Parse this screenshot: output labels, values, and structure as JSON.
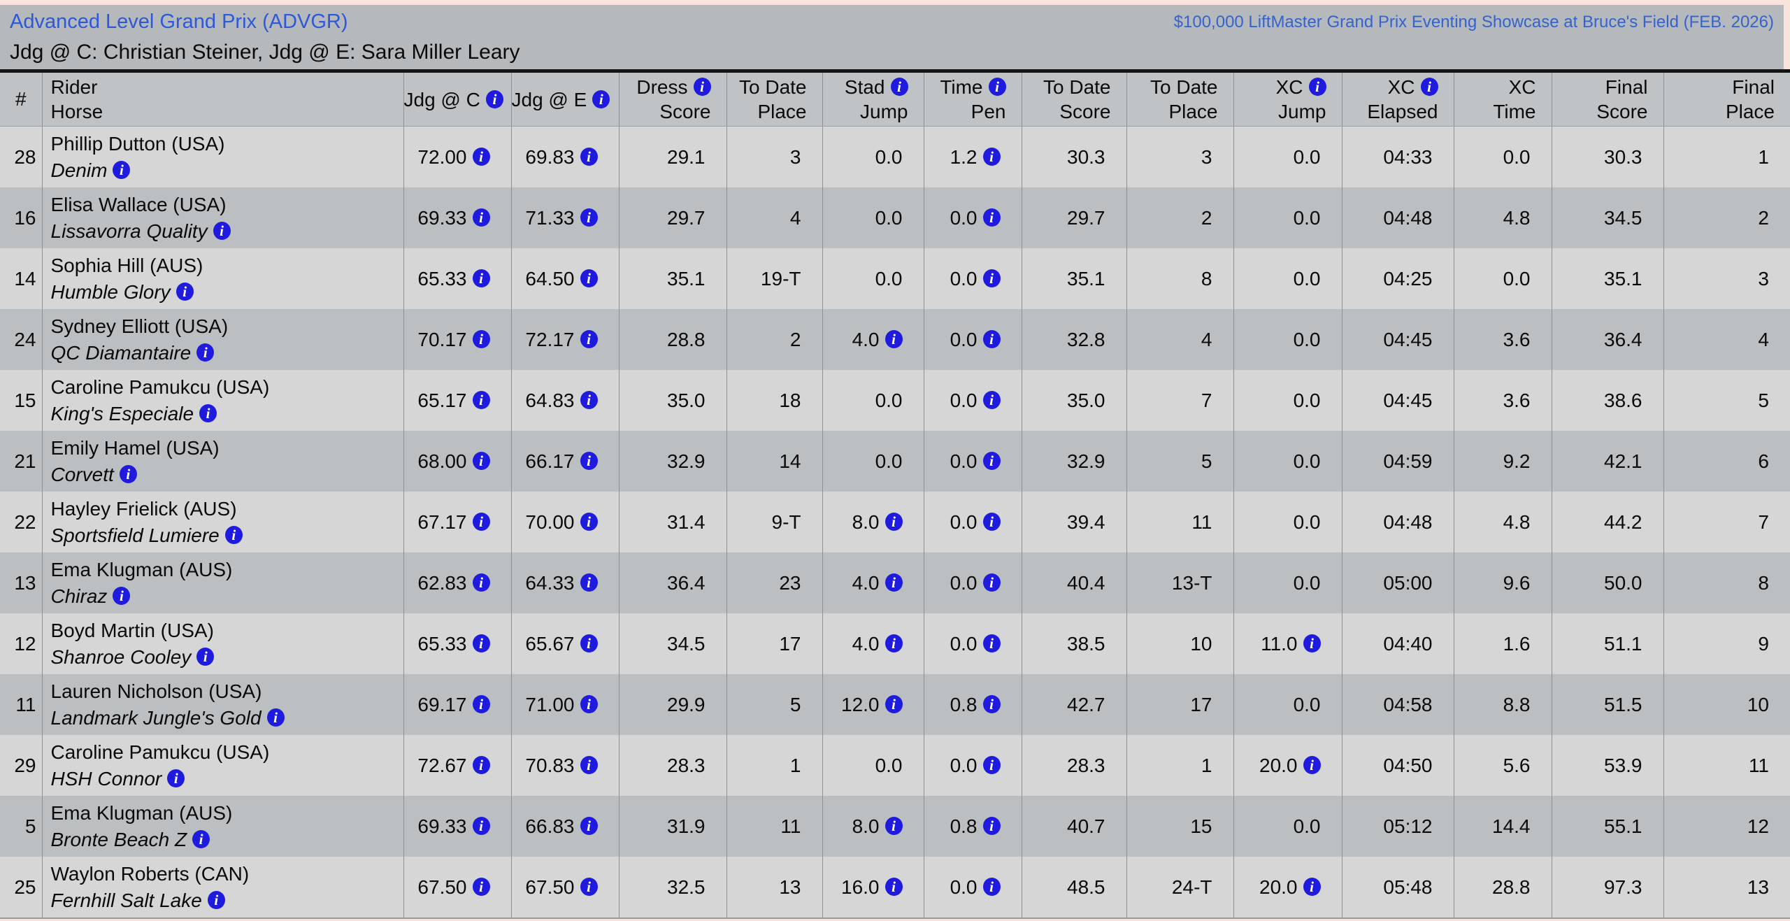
{
  "page": {
    "title_left": "Advanced Level Grand Prix (ADVGR)",
    "title_right": "$100,000 LiftMaster Grand Prix Eventing Showcase at Bruce's Field (FEB. 2026)",
    "judges_line": "Jdg @ C: Christian Steiner, Jdg @ E: Sara Miller Leary"
  },
  "colors": {
    "link_blue": "#2d58d8",
    "info_icon_blue": "#1e1bdf",
    "row_odd": "#d6d6d7",
    "row_even": "#bcbfc1",
    "header_bg": "#c0c3c5",
    "band_bg": "#b6b9bc",
    "page_bg": "#f8e4da"
  },
  "icons": {
    "info": "info-icon"
  },
  "table": {
    "columns": [
      {
        "key": "num",
        "h1": "#",
        "h2": null,
        "hicon": false,
        "cell_icon": "never"
      },
      {
        "key": "rider_horse",
        "h1": "Rider",
        "h2": "Horse",
        "hicon": false,
        "cell_icon": "never"
      },
      {
        "key": "jdg_c",
        "h1": "Jdg @ C",
        "h2": null,
        "hicon": true,
        "cell_icon": "always"
      },
      {
        "key": "jdg_e",
        "h1": "Jdg @ E",
        "h2": null,
        "hicon": true,
        "cell_icon": "always"
      },
      {
        "key": "dress_score",
        "h1": "Dress",
        "h2": "Score",
        "hicon": true,
        "cell_icon": "never"
      },
      {
        "key": "to_date_place1",
        "h1": "To Date",
        "h2": "Place",
        "hicon": false,
        "cell_icon": "never"
      },
      {
        "key": "stad_jump",
        "h1": "Stad",
        "h2": "Jump",
        "hicon": true,
        "cell_icon": "flag"
      },
      {
        "key": "time_pen",
        "h1": "Time",
        "h2": "Pen",
        "hicon": true,
        "cell_icon": "always"
      },
      {
        "key": "to_date_score",
        "h1": "To Date",
        "h2": "Score",
        "hicon": false,
        "cell_icon": "never"
      },
      {
        "key": "to_date_place2",
        "h1": "To Date",
        "h2": "Place",
        "hicon": false,
        "cell_icon": "never"
      },
      {
        "key": "xc_jump",
        "h1": "XC",
        "h2": "Jump",
        "hicon": true,
        "cell_icon": "flag"
      },
      {
        "key": "xc_elapsed",
        "h1": "XC",
        "h2": "Elapsed",
        "hicon": true,
        "cell_icon": "never"
      },
      {
        "key": "xc_time",
        "h1": "XC",
        "h2": "Time",
        "hicon": false,
        "cell_icon": "never"
      },
      {
        "key": "final_score",
        "h1": "Final",
        "h2": "Score",
        "hicon": false,
        "cell_icon": "never"
      },
      {
        "key": "final_place",
        "h1": "Final",
        "h2": "Place",
        "hicon": false,
        "cell_icon": "never"
      }
    ],
    "rows": [
      {
        "num": "28",
        "rider": "Phillip Dutton (USA)",
        "horse": "Denim",
        "jdg_c": "72.00",
        "jdg_e": "69.83",
        "dress_score": "29.1",
        "to_date_place1": "3",
        "stad_jump": "0.0",
        "time_pen": "1.2",
        "to_date_score": "30.3",
        "to_date_place2": "3",
        "xc_jump": "0.0",
        "xc_elapsed": "04:33",
        "xc_time": "0.0",
        "final_score": "30.3",
        "final_place": "1",
        "icons": []
      },
      {
        "num": "16",
        "rider": "Elisa Wallace (USA)",
        "horse": "Lissavorra Quality",
        "jdg_c": "69.33",
        "jdg_e": "71.33",
        "dress_score": "29.7",
        "to_date_place1": "4",
        "stad_jump": "0.0",
        "time_pen": "0.0",
        "to_date_score": "29.7",
        "to_date_place2": "2",
        "xc_jump": "0.0",
        "xc_elapsed": "04:48",
        "xc_time": "4.8",
        "final_score": "34.5",
        "final_place": "2",
        "icons": []
      },
      {
        "num": "14",
        "rider": "Sophia Hill (AUS)",
        "horse": "Humble Glory",
        "jdg_c": "65.33",
        "jdg_e": "64.50",
        "dress_score": "35.1",
        "to_date_place1": "19-T",
        "stad_jump": "0.0",
        "time_pen": "0.0",
        "to_date_score": "35.1",
        "to_date_place2": "8",
        "xc_jump": "0.0",
        "xc_elapsed": "04:25",
        "xc_time": "0.0",
        "final_score": "35.1",
        "final_place": "3",
        "icons": []
      },
      {
        "num": "24",
        "rider": "Sydney Elliott (USA)",
        "horse": "QC Diamantaire",
        "jdg_c": "70.17",
        "jdg_e": "72.17",
        "dress_score": "28.8",
        "to_date_place1": "2",
        "stad_jump": "4.0",
        "time_pen": "0.0",
        "to_date_score": "32.8",
        "to_date_place2": "4",
        "xc_jump": "0.0",
        "xc_elapsed": "04:45",
        "xc_time": "3.6",
        "final_score": "36.4",
        "final_place": "4",
        "icons": [
          "stad_jump"
        ]
      },
      {
        "num": "15",
        "rider": "Caroline Pamukcu (USA)",
        "horse": "King's Especiale",
        "jdg_c": "65.17",
        "jdg_e": "64.83",
        "dress_score": "35.0",
        "to_date_place1": "18",
        "stad_jump": "0.0",
        "time_pen": "0.0",
        "to_date_score": "35.0",
        "to_date_place2": "7",
        "xc_jump": "0.0",
        "xc_elapsed": "04:45",
        "xc_time": "3.6",
        "final_score": "38.6",
        "final_place": "5",
        "icons": []
      },
      {
        "num": "21",
        "rider": "Emily Hamel (USA)",
        "horse": "Corvett",
        "jdg_c": "68.00",
        "jdg_e": "66.17",
        "dress_score": "32.9",
        "to_date_place1": "14",
        "stad_jump": "0.0",
        "time_pen": "0.0",
        "to_date_score": "32.9",
        "to_date_place2": "5",
        "xc_jump": "0.0",
        "xc_elapsed": "04:59",
        "xc_time": "9.2",
        "final_score": "42.1",
        "final_place": "6",
        "icons": []
      },
      {
        "num": "22",
        "rider": "Hayley Frielick (AUS)",
        "horse": "Sportsfield Lumiere",
        "jdg_c": "67.17",
        "jdg_e": "70.00",
        "dress_score": "31.4",
        "to_date_place1": "9-T",
        "stad_jump": "8.0",
        "time_pen": "0.0",
        "to_date_score": "39.4",
        "to_date_place2": "11",
        "xc_jump": "0.0",
        "xc_elapsed": "04:48",
        "xc_time": "4.8",
        "final_score": "44.2",
        "final_place": "7",
        "icons": [
          "stad_jump"
        ]
      },
      {
        "num": "13",
        "rider": "Ema Klugman (AUS)",
        "horse": "Chiraz",
        "jdg_c": "62.83",
        "jdg_e": "64.33",
        "dress_score": "36.4",
        "to_date_place1": "23",
        "stad_jump": "4.0",
        "time_pen": "0.0",
        "to_date_score": "40.4",
        "to_date_place2": "13-T",
        "xc_jump": "0.0",
        "xc_elapsed": "05:00",
        "xc_time": "9.6",
        "final_score": "50.0",
        "final_place": "8",
        "icons": [
          "stad_jump"
        ]
      },
      {
        "num": "12",
        "rider": "Boyd Martin (USA)",
        "horse": "Shanroe Cooley",
        "jdg_c": "65.33",
        "jdg_e": "65.67",
        "dress_score": "34.5",
        "to_date_place1": "17",
        "stad_jump": "4.0",
        "time_pen": "0.0",
        "to_date_score": "38.5",
        "to_date_place2": "10",
        "xc_jump": "11.0",
        "xc_elapsed": "04:40",
        "xc_time": "1.6",
        "final_score": "51.1",
        "final_place": "9",
        "icons": [
          "stad_jump",
          "xc_jump"
        ]
      },
      {
        "num": "11",
        "rider": "Lauren Nicholson (USA)",
        "horse": "Landmark Jungle's Gold",
        "jdg_c": "69.17",
        "jdg_e": "71.00",
        "dress_score": "29.9",
        "to_date_place1": "5",
        "stad_jump": "12.0",
        "time_pen": "0.8",
        "to_date_score": "42.7",
        "to_date_place2": "17",
        "xc_jump": "0.0",
        "xc_elapsed": "04:58",
        "xc_time": "8.8",
        "final_score": "51.5",
        "final_place": "10",
        "icons": [
          "stad_jump"
        ]
      },
      {
        "num": "29",
        "rider": "Caroline Pamukcu (USA)",
        "horse": "HSH Connor",
        "jdg_c": "72.67",
        "jdg_e": "70.83",
        "dress_score": "28.3",
        "to_date_place1": "1",
        "stad_jump": "0.0",
        "time_pen": "0.0",
        "to_date_score": "28.3",
        "to_date_place2": "1",
        "xc_jump": "20.0",
        "xc_elapsed": "04:50",
        "xc_time": "5.6",
        "final_score": "53.9",
        "final_place": "11",
        "icons": [
          "xc_jump"
        ]
      },
      {
        "num": "5",
        "rider": "Ema Klugman (AUS)",
        "horse": "Bronte Beach Z",
        "jdg_c": "69.33",
        "jdg_e": "66.83",
        "dress_score": "31.9",
        "to_date_place1": "11",
        "stad_jump": "8.0",
        "time_pen": "0.8",
        "to_date_score": "40.7",
        "to_date_place2": "15",
        "xc_jump": "0.0",
        "xc_elapsed": "05:12",
        "xc_time": "14.4",
        "final_score": "55.1",
        "final_place": "12",
        "icons": [
          "stad_jump"
        ]
      },
      {
        "num": "25",
        "rider": "Waylon Roberts (CAN)",
        "horse": "Fernhill Salt Lake",
        "jdg_c": "67.50",
        "jdg_e": "67.50",
        "dress_score": "32.5",
        "to_date_place1": "13",
        "stad_jump": "16.0",
        "time_pen": "0.0",
        "to_date_score": "48.5",
        "to_date_place2": "24-T",
        "xc_jump": "20.0",
        "xc_elapsed": "05:48",
        "xc_time": "28.8",
        "final_score": "97.3",
        "final_place": "13",
        "icons": [
          "stad_jump",
          "xc_jump"
        ]
      }
    ]
  }
}
